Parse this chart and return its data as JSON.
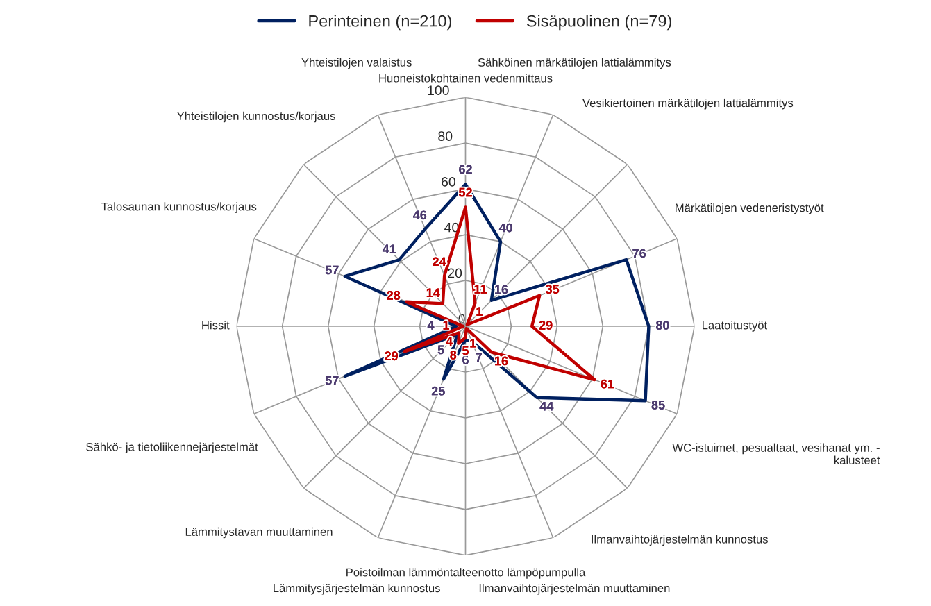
{
  "chart_data": {
    "type": "radar",
    "categories": [
      "Huoneistokohtainen vedenmittaus",
      "Sähköinen märkätilojen lattialämmitys",
      "Vesikiertoinen märkätilojen lattialämmitys",
      "Märkätilojen vedeneristystyöt",
      "Laatoitustyöt",
      "WC-istuimet, pesualtaat, vesihanat ym. -\nkalusteet",
      "Ilmanvaihtojärjestelmän kunnostus",
      "Ilmanvaihtojärjestelmän muuttaminen",
      "Poistoilman lämmöntalteenotto lämpöpumpulla",
      "Lämmitysjärjestelmän kunnostus",
      "Lämmitystavan muuttaminen",
      "Sähkö- ja tietoliikennejärjestelmät",
      "Hissit",
      "Talosaunan kunnostus/korjaus",
      "Yhteistilojen kunnostus/korjaus",
      "Yhteistilojen valaistus"
    ],
    "series": [
      {
        "name": "Perinteinen (n=210)",
        "color": "#002060",
        "values": [
          62,
          40,
          16,
          76,
          80,
          85,
          44,
          7,
          6,
          25,
          5,
          57,
          4,
          57,
          41,
          46
        ]
      },
      {
        "name": "Sisäpuolinen (n=79)",
        "color": "#c00000",
        "values": [
          52,
          11,
          1,
          35,
          29,
          61,
          16,
          1,
          5,
          8,
          4,
          29,
          1,
          28,
          14,
          24
        ]
      }
    ],
    "ylim": [
      0,
      100
    ],
    "yticks": [
      0,
      20,
      40,
      60,
      80,
      100
    ],
    "data_labels": true,
    "grid": true,
    "legend": "top",
    "marker": "none",
    "line_style": "solid"
  }
}
